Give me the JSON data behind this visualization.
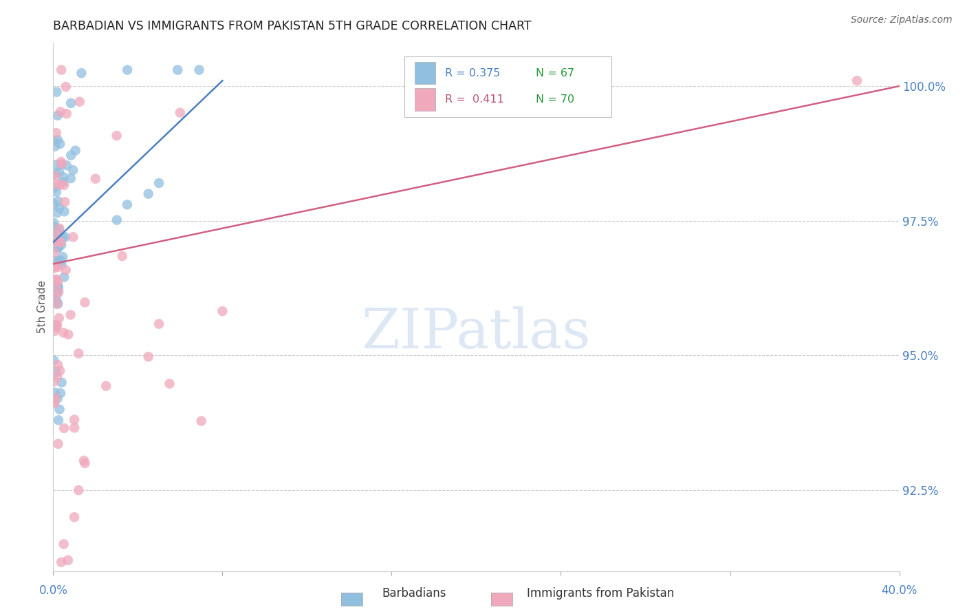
{
  "title": "BARBADIAN VS IMMIGRANTS FROM PAKISTAN 5TH GRADE CORRELATION CHART",
  "source": "Source: ZipAtlas.com",
  "ylabel": "5th Grade",
  "ytick_values": [
    92.5,
    95.0,
    97.5,
    100.0
  ],
  "xmin": 0.0,
  "xmax": 40.0,
  "ymin": 91.0,
  "ymax": 100.8,
  "legend_blue_R": "0.375",
  "legend_blue_N": "67",
  "legend_pink_R": "0.411",
  "legend_pink_N": "70",
  "blue_color": "#90bfe0",
  "pink_color": "#f0a8bc",
  "blue_line_color": "#4a7fc0",
  "pink_line_color": "#d06080",
  "watermark_color": "#dde8f4"
}
